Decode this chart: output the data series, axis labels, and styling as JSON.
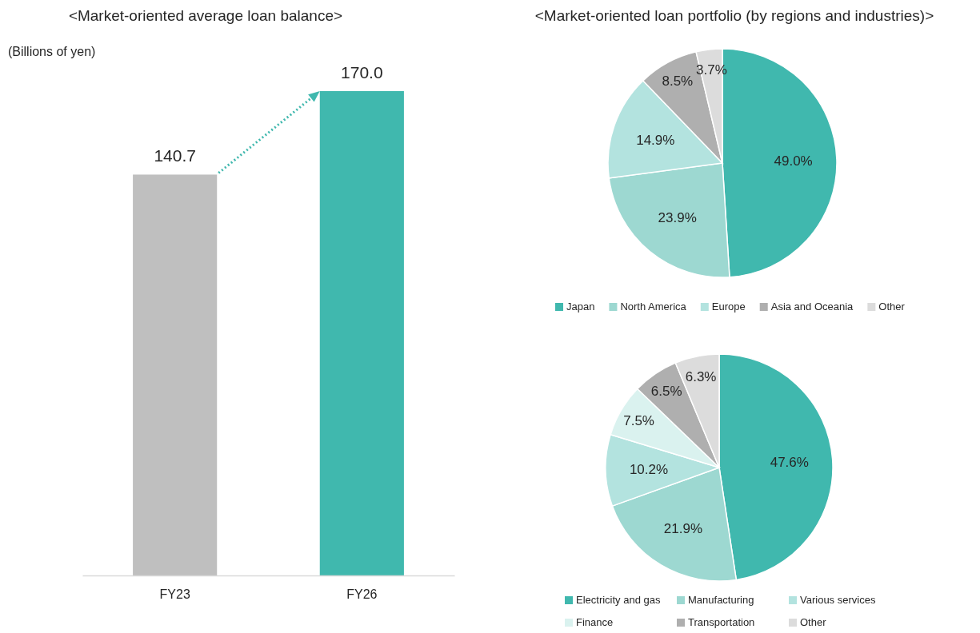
{
  "chart_data": [
    {
      "type": "bar",
      "title": "<Market-oriented average loan balance>",
      "ylabel": "(Billions of yen)",
      "categories": [
        "FY23",
        "FY26"
      ],
      "values": [
        140.7,
        170.0
      ],
      "colors": [
        "#bfbfbf",
        "#40b8ae"
      ],
      "value_labels": [
        "140.7",
        "170.0"
      ]
    },
    {
      "type": "pie",
      "title": "<Market-oriented loan portfolio (by regions and industries)>",
      "categories": [
        "Japan",
        "North America",
        "Europe",
        "Asia and Oceania",
        "Other"
      ],
      "values": [
        49.0,
        23.9,
        14.9,
        8.5,
        3.7
      ],
      "value_labels": [
        "49.0%",
        "23.9%",
        "14.9%",
        "8.5%",
        "3.7%"
      ],
      "colors": [
        "#40b8ae",
        "#9dd8d1",
        "#b3e3df",
        "#afafaf",
        "#dcdcdc"
      ],
      "legend": "bottom"
    },
    {
      "type": "pie",
      "categories": [
        "Electricity and gas",
        "Manufacturing",
        "Various services",
        "Finance",
        "Transportation",
        "Other"
      ],
      "values": [
        47.6,
        21.9,
        10.2,
        7.5,
        6.5,
        6.3
      ],
      "value_labels": [
        "47.6%",
        "21.9%",
        "10.2%",
        "7.5%",
        "6.5%",
        "6.3%"
      ],
      "colors": [
        "#40b8ae",
        "#9dd8d1",
        "#b3e3df",
        "#daf2ef",
        "#afafaf",
        "#dcdcdc"
      ],
      "legend": "bottom"
    }
  ]
}
